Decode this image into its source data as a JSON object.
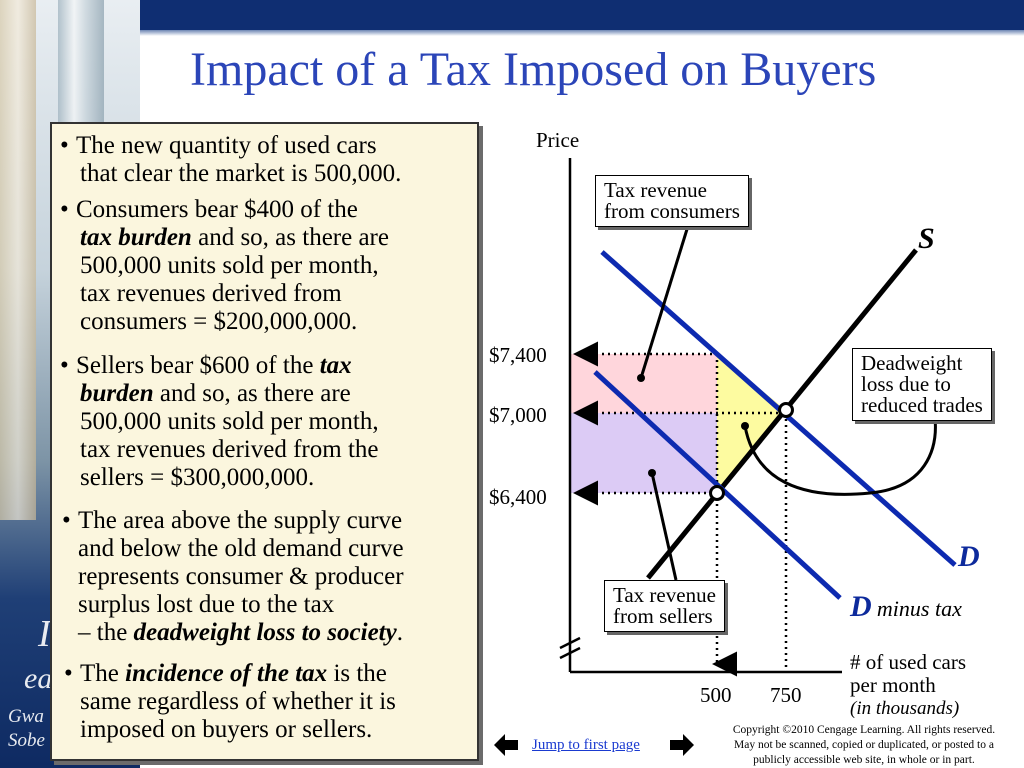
{
  "slide": {
    "title": "Impact of a Tax Imposed on Buyers",
    "left_faint_text": [
      "I",
      "ea",
      "Gwa",
      "Sobe"
    ]
  },
  "textbox": {
    "bullet_char": "•",
    "b1": [
      "The new quantity of used cars",
      "that clear the market is 500,000."
    ],
    "b2": {
      "l1": "Consumers bear $400 of the",
      "l2_em": "tax burden",
      "l2_rest": " and so, as there are",
      "l3": "500,000 units sold per month,",
      "l4": "tax revenues derived from",
      "l5": "consumers = $200,000,000."
    },
    "b3": {
      "l1_pre": "Sellers bear $600 of the ",
      "l1_em": "tax",
      "l2_em": "burden",
      "l2_rest": " and so, as there are",
      "l3": "500,000 units sold per month,",
      "l4": "tax revenues derived from the",
      "l5": "sellers = $300,000,000."
    },
    "b4": {
      "l1": "The area above the supply curve",
      "l2": "and below the old demand curve",
      "l3": "represents consumer & producer",
      "l4": "surplus lost due to the tax",
      "l5_pre": "– the ",
      "l5_em": "deadweight loss to society",
      "l5_post": "."
    },
    "b5": {
      "l1_pre": "The ",
      "l1_em": "incidence of the tax",
      "l1_post": " is the",
      "l2": "same regardless of whether it is",
      "l3": "imposed on buyers or sellers."
    }
  },
  "diagram": {
    "y_axis_label": "Price",
    "x_axis_label": [
      "# of used cars",
      "per month"
    ],
    "x_axis_unit": "(in thousands)",
    "price_labels": [
      "$7,400",
      "$7,000",
      "$6,400"
    ],
    "qty_labels": [
      "500",
      "750"
    ],
    "supply_label": "S",
    "demand_label": "D",
    "demand_tax_label": "D",
    "demand_tax_suffix": "minus tax",
    "callouts": {
      "consumers": [
        "Tax revenue",
        "from consumers"
      ],
      "deadweight": [
        "Deadweight",
        "loss due to",
        "reduced trades"
      ],
      "sellers": [
        "Tax revenue",
        "from sellers"
      ]
    },
    "colors": {
      "curve_demand": "#0d2ab0",
      "curve_supply": "#000000",
      "consumer_area": "#ffd6dc",
      "seller_area": "#dccbf5",
      "deadweight_area": "#fdfba0"
    }
  },
  "footer": {
    "link": "Jump to first page",
    "copyright": [
      "Copyright ©2010 Cengage Learning. All rights reserved.",
      "May not be scanned, copied or duplicated, or posted to a",
      "publicly accessible web site, in whole or in part."
    ]
  }
}
